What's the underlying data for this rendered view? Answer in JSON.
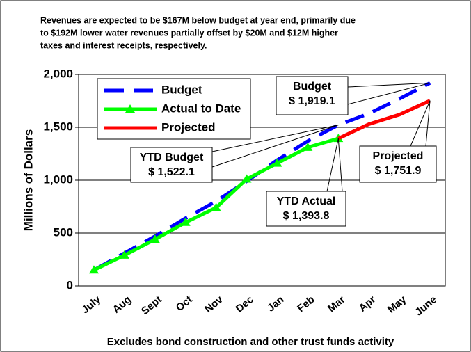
{
  "chart_data": {
    "type": "line",
    "title": [
      "Revenues are expected to be $167M below budget at year end, primarily due",
      "to $192M lower water revenues partially offset by $20M and $12M higher",
      "taxes and interest receipts, respectively."
    ],
    "y_label": "Millions of Dollars",
    "x_label": "Excludes bond construction and other trust funds activity",
    "categories": [
      "July",
      "Aug",
      "Sept",
      "Oct",
      "Nov",
      "Dec",
      "Jan",
      "Feb",
      "Mar",
      "Apr",
      "May",
      "June"
    ],
    "series": [
      {
        "name": "Budget",
        "color": "#0000ff",
        "style": "dashed",
        "values": [
          150,
          310,
          470,
          640,
          800,
          990,
          1190,
          1370,
          1522.1,
          1630,
          1770,
          1919.1
        ]
      },
      {
        "name": "Actual to Date",
        "color": "#00ff00",
        "style": "triangle",
        "values": [
          150,
          290,
          440,
          600,
          740,
          1010,
          1160,
          1310,
          1393.8,
          null,
          null,
          null
        ]
      },
      {
        "name": "Projected",
        "color": "#ff0000",
        "style": "solid",
        "values": [
          null,
          null,
          null,
          null,
          null,
          null,
          null,
          null,
          1393.8,
          1530,
          1620,
          1751.9
        ]
      }
    ],
    "ylim": [
      0,
      2000
    ],
    "yticks": [
      0,
      500,
      {
        "value": 1000,
        "label": "1,000"
      },
      {
        "value": 1500,
        "label": "1,500"
      },
      {
        "value": 2000,
        "label": "2,000"
      }
    ],
    "grid": true,
    "legend": "upper left",
    "annotations": [
      {
        "lines": [
          "Budget",
          "$ 1,919.1"
        ]
      },
      {
        "lines": [
          "YTD Budget",
          "$ 1,522.1"
        ]
      },
      {
        "lines": [
          "YTD Actual",
          "$ 1,393.8"
        ]
      },
      {
        "lines": [
          "Projected",
          "$ 1,751.9"
        ]
      }
    ]
  }
}
